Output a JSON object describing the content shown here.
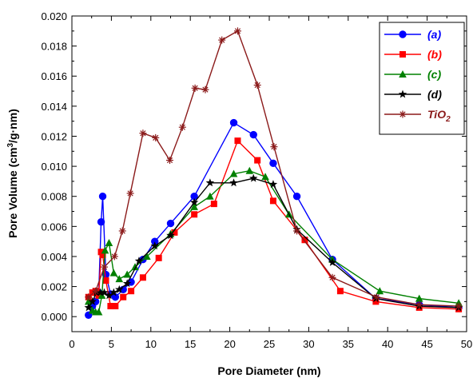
{
  "chart_data": {
    "type": "line",
    "xlabel": "Pore Diameter (nm)",
    "ylabel_main": "Pore Volume (cm",
    "ylabel_sup": "3",
    "ylabel_end": "/g·nm)",
    "xlim": [
      0,
      50
    ],
    "ylim": [
      -0.001,
      0.02
    ],
    "xticks": [
      0,
      5,
      10,
      15,
      20,
      25,
      30,
      35,
      40,
      45,
      50
    ],
    "xtick_labels": [
      "0",
      "5",
      "10",
      "15",
      "20",
      "25",
      "30",
      "35",
      "40",
      "45",
      "50"
    ],
    "yticks": [
      0.0,
      0.002,
      0.004,
      0.006,
      0.008,
      0.01,
      0.012,
      0.014,
      0.016,
      0.018,
      0.02
    ],
    "ytick_labels": [
      "0.000",
      "0.002",
      "0.004",
      "0.006",
      "0.008",
      "0.010",
      "0.012",
      "0.014",
      "0.016",
      "0.018",
      "0.020"
    ],
    "grid": false,
    "legend_position": "top-right",
    "series": [
      {
        "name": "(a)",
        "color": "#0000ff",
        "marker": "circle",
        "x": [
          2.1,
          2.6,
          3.0,
          3.4,
          3.7,
          3.9,
          4.3,
          4.9,
          5.5,
          6.5,
          7.5,
          9,
          10.5,
          12.5,
          15.5,
          20.5,
          23,
          25.5,
          28.5,
          33,
          38.5,
          44,
          49
        ],
        "y": [
          0.0001,
          0.0007,
          0.001,
          0.0016,
          0.0063,
          0.008,
          0.0028,
          0.0015,
          0.0013,
          0.0018,
          0.0023,
          0.0038,
          0.005,
          0.0062,
          0.008,
          0.0129,
          0.0121,
          0.0102,
          0.008,
          0.0038,
          0.0012,
          0.0008,
          0.0006
        ]
      },
      {
        "name": "(b)",
        "color": "#ff0000",
        "marker": "square",
        "x": [
          2.1,
          2.6,
          3.0,
          3.4,
          3.7,
          3.9,
          4.3,
          4.9,
          5.5,
          6.5,
          7.5,
          9,
          11,
          13,
          15.5,
          18,
          21,
          23.5,
          25.5,
          29.5,
          34,
          38.5,
          44,
          49
        ],
        "y": [
          0.0013,
          0.0016,
          0.0017,
          0.0014,
          0.0043,
          0.0041,
          0.0024,
          0.0007,
          0.0007,
          0.0013,
          0.0017,
          0.0026,
          0.0039,
          0.0056,
          0.0068,
          0.0075,
          0.0117,
          0.0104,
          0.0077,
          0.0051,
          0.0017,
          0.001,
          0.0006,
          0.0005
        ]
      },
      {
        "name": "(c)",
        "color": "#008000",
        "marker": "triangle",
        "x": [
          2.1,
          2.6,
          3.0,
          3.4,
          3.8,
          4.2,
          4.7,
          5.3,
          6.0,
          7.0,
          8.0,
          9.5,
          12.5,
          15.5,
          17.5,
          20.5,
          22.5,
          24.5,
          27.5,
          33,
          39,
          44,
          49
        ],
        "y": [
          0.001,
          0.0004,
          0.0003,
          0.0003,
          0.0014,
          0.0044,
          0.0049,
          0.0029,
          0.0025,
          0.0028,
          0.0033,
          0.004,
          0.0055,
          0.0073,
          0.008,
          0.0095,
          0.0097,
          0.0093,
          0.0068,
          0.0038,
          0.0017,
          0.0012,
          0.0009
        ]
      },
      {
        "name": "(d)",
        "color": "#000000",
        "marker": "star",
        "x": [
          2.1,
          2.6,
          3.1,
          3.6,
          4.1,
          4.7,
          5.3,
          6.0,
          7.0,
          8.5,
          10.5,
          12.5,
          15.5,
          17.5,
          20.5,
          23,
          25.5,
          28.5,
          33,
          38.5,
          44,
          49
        ],
        "y": [
          0.0006,
          0.001,
          0.0016,
          0.0016,
          0.0016,
          0.0014,
          0.0016,
          0.0018,
          0.0022,
          0.0037,
          0.0047,
          0.0054,
          0.0076,
          0.0089,
          0.0089,
          0.0092,
          0.0088,
          0.0058,
          0.0036,
          0.0012,
          0.0007,
          0.0006
        ]
      },
      {
        "name": "TiO",
        "name_sub": "2",
        "color": "#8b1a1a",
        "marker": "asterisk",
        "x": [
          2.1,
          3.0,
          4.1,
          5.4,
          6.4,
          7.4,
          9.0,
          10.6,
          12.4,
          14.0,
          15.6,
          16.9,
          19.0,
          21.0,
          23.5,
          25.6,
          28.5,
          33.0,
          38.6,
          44.0,
          49.0
        ],
        "y": [
          0.0013,
          0.0017,
          0.0033,
          0.004,
          0.0057,
          0.0082,
          0.0122,
          0.0119,
          0.0104,
          0.0126,
          0.0152,
          0.0151,
          0.0184,
          0.019,
          0.0154,
          0.0113,
          0.0057,
          0.0026,
          0.0013,
          0.0008,
          0.0007
        ]
      }
    ]
  }
}
